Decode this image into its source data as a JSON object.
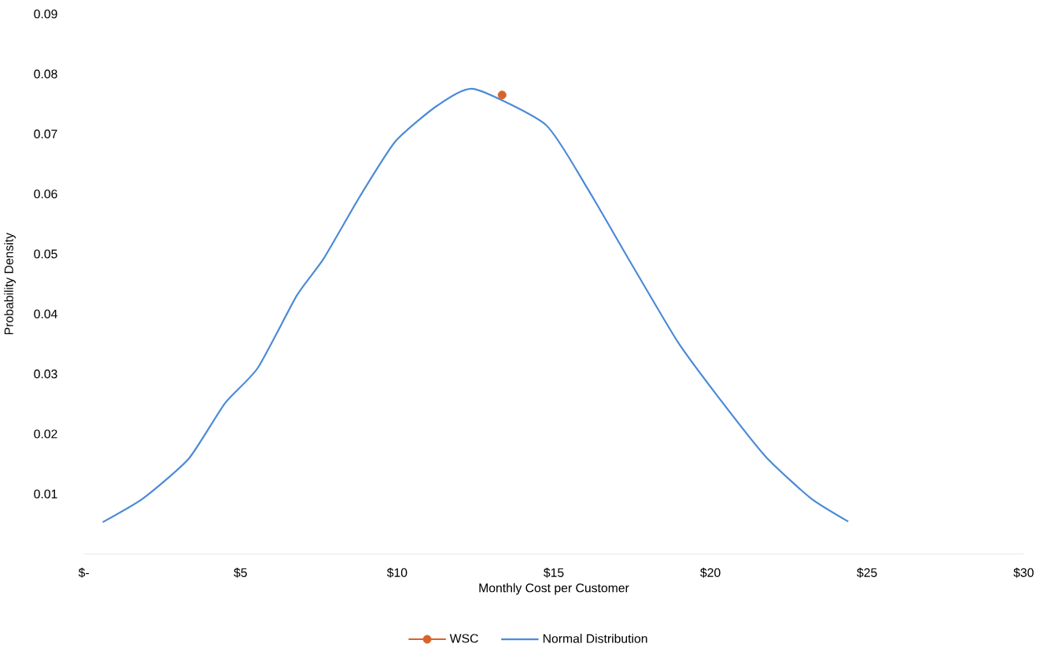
{
  "chart_data": {
    "type": "line",
    "xlabel": "Monthly Cost per Customer",
    "ylabel": "Probability Density",
    "xlim": [
      0,
      30
    ],
    "ylim": [
      0,
      0.09
    ],
    "xticks": [
      {
        "value": 0,
        "label": "$-"
      },
      {
        "value": 5,
        "label": "$5"
      },
      {
        "value": 10,
        "label": "$10"
      },
      {
        "value": 15,
        "label": "$15"
      },
      {
        "value": 20,
        "label": "$20"
      },
      {
        "value": 25,
        "label": "$25"
      },
      {
        "value": 30,
        "label": "$30"
      }
    ],
    "yticks": [
      0.01,
      0.02,
      0.03,
      0.04,
      0.05,
      0.06,
      0.07,
      0.08,
      0.09
    ],
    "grid": false,
    "legend": "bottom",
    "series": [
      {
        "name": "WSC",
        "type": "scatter",
        "marker": "circle",
        "color": "#d9622b",
        "x": [
          13.35
        ],
        "values": [
          0.0765
        ]
      },
      {
        "name": "Normal Distribution",
        "marker": "none",
        "color": "#4a8ad8",
        "x": [
          0.6,
          1.9,
          3.35,
          4.5,
          5.55,
          6.8,
          7.65,
          8.8,
          9.95,
          11.3,
          12.45,
          14.75,
          16.1,
          17.45,
          18.95,
          20.2,
          21.75,
          23.2,
          24.4
        ],
        "values": [
          0.0053,
          0.0093,
          0.0159,
          0.0251,
          0.031,
          0.0431,
          0.0492,
          0.0595,
          0.0688,
          0.0748,
          0.0775,
          0.0715,
          0.0607,
          0.0486,
          0.0354,
          0.0265,
          0.0163,
          0.0093,
          0.0054
        ]
      }
    ]
  }
}
